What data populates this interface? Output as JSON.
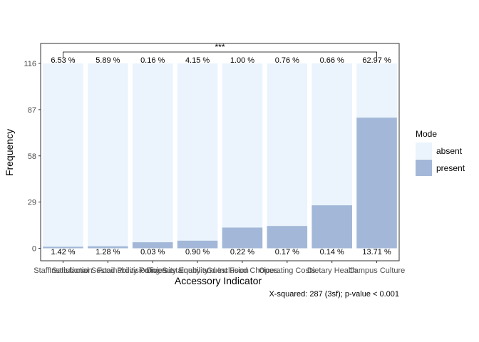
{
  "chart_data": {
    "type": "bar",
    "stacked": true,
    "xlabel": "Accessory Indicator",
    "ylabel": "Frequency",
    "ylim": [
      0,
      116
    ],
    "yticks": [
      "0",
      "29",
      "58",
      "87",
      "116"
    ],
    "categories": [
      "Staff Satisfaction",
      "Institutional Sustainability Policies",
      "Food Provisioning Sustainability",
      "Diversity Equity and Inclusion",
      "Guest Food Choices",
      "Operating Costs",
      "Dietary Health",
      "Campus Culture"
    ],
    "series": [
      {
        "name": "present",
        "color": "#a3b8d8",
        "values": [
          1,
          1.3,
          3.8,
          4.8,
          13,
          14,
          27,
          82
        ]
      },
      {
        "name": "absent",
        "color": "#ebf4fd",
        "values": [
          115,
          114.7,
          112.2,
          111.2,
          103,
          102,
          89,
          34
        ]
      }
    ],
    "top_labels": [
      "6.53 %",
      "5.89 %",
      "0.16 %",
      "4.15 %",
      "1.00 %",
      "0.76 %",
      "0.66 %",
      "62.97 %"
    ],
    "bottom_labels": [
      "1.42 %",
      "1.28 %",
      "0.03 %",
      "0.90 %",
      "0.22 %",
      "0.17 %",
      "0.14 %",
      "13.71 %"
    ],
    "significance": "***",
    "caption": "X-squared: 287 (3sf); p-value < 0.001",
    "legend": {
      "title": "Mode",
      "placement": "right",
      "items": [
        "absent",
        "present"
      ]
    },
    "grid": false
  }
}
